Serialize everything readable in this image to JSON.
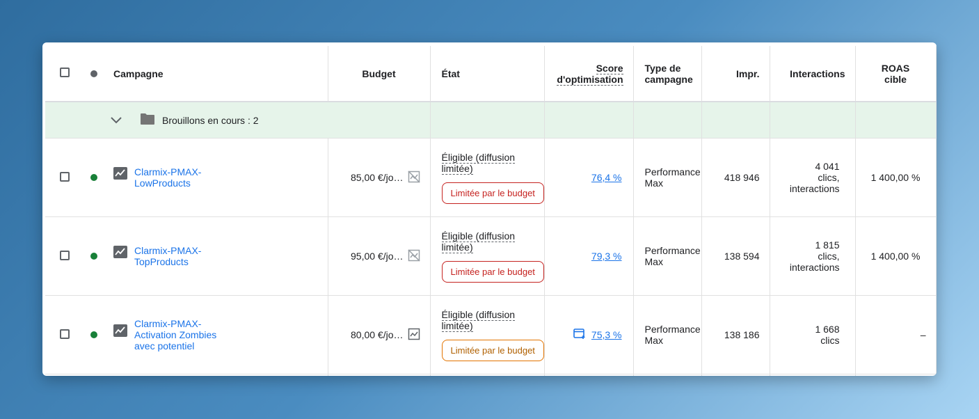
{
  "columns": {
    "campaign": "Campagne",
    "budget": "Budget",
    "status": "État",
    "score_line1": "Score",
    "score_line2": "d'optimisation",
    "type_line1": "Type de",
    "type_line2": "campagne",
    "impr": "Impr.",
    "interactions": "Interactions",
    "roas_line1": "ROAS",
    "roas_line2": "cible"
  },
  "group": {
    "label": "Brouillons en cours : 2"
  },
  "rows": [
    {
      "name_line1": "Clarmix-PMAX-",
      "name_line2": "LowProducts",
      "name_line3": "",
      "budget": "85,00 €/jo…",
      "status_line1": "Éligible (diffusion",
      "status_line2": "limitée)",
      "chip": "Limitée par le budget",
      "chip_color": "#c5221f",
      "score": "76,4 %",
      "type_line1": "Performance",
      "type_line2": "Max",
      "impr": "418 946",
      "inter_line1": "4 041",
      "inter_line2": "clics,",
      "inter_line3": "interactions",
      "roas": "1 400,00 %"
    },
    {
      "name_line1": "Clarmix-PMAX-",
      "name_line2": "TopProducts",
      "name_line3": "",
      "budget": "95,00 €/jo…",
      "status_line1": "Éligible (diffusion",
      "status_line2": "limitée)",
      "chip": "Limitée par le budget",
      "chip_color": "#c5221f",
      "score": "79,3 %",
      "type_line1": "Performance",
      "type_line2": "Max",
      "impr": "138 594",
      "inter_line1": "1 815",
      "inter_line2": "clics,",
      "inter_line3": "interactions",
      "roas": "1 400,00 %"
    },
    {
      "name_line1": "Clarmix-PMAX-",
      "name_line2": "Activation Zombies",
      "name_line3": "avec potentiel",
      "budget": "80,00 €/jo…",
      "status_line1": "Éligible (diffusion",
      "status_line2": "limitée)",
      "chip": "Limitée par le budget",
      "chip_color": "#e37400",
      "score": "75,3 %",
      "type_line1": "Performance",
      "type_line2": "Max",
      "impr": "138 186",
      "inter_line1": "1 668",
      "inter_line2": "clics",
      "inter_line3": "",
      "roas": "–"
    }
  ],
  "icons": {
    "group_toggle": "chevron-down-icon",
    "group_folder": "folder-icon",
    "campaign_type": "trending-chart-icon",
    "budget_chart_off": "chart-off-icon",
    "budget_chart": "chart-icon",
    "score_recommendation": "recommendation-window-icon"
  },
  "colors": {
    "link": "#1a73e8",
    "status_enabled": "#188038",
    "group_background": "#e6f4ea"
  }
}
